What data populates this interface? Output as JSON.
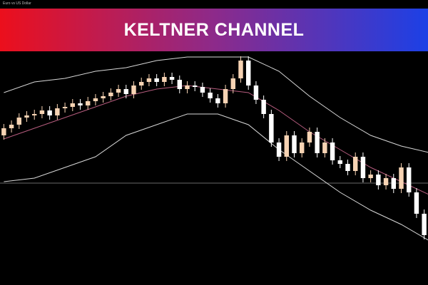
{
  "chart_data": {
    "type": "candlestick",
    "symbol": "Euro vs US Dollar",
    "title": "KELTNER CHANNEL",
    "ylim": [
      0,
      328
    ],
    "up_color": "#f7d3b3",
    "down_color": "#ffffff",
    "price_line": 143,
    "price_line_color": "#8a8a8a",
    "open": [
      210,
      220,
      225,
      235,
      238,
      240,
      245,
      238,
      248,
      250,
      255,
      252,
      258,
      262,
      265,
      270,
      275,
      268,
      280,
      285,
      290,
      285,
      292,
      288,
      275,
      280,
      278,
      270,
      262,
      255,
      275,
      290,
      315,
      280,
      260,
      240,
      200,
      180,
      210,
      185,
      200,
      215,
      185,
      200,
      175,
      170,
      160,
      180,
      150,
      155,
      140,
      150,
      135,
      165,
      130,
      100
    ],
    "close": [
      220,
      225,
      235,
      238,
      240,
      245,
      238,
      248,
      250,
      255,
      252,
      258,
      262,
      265,
      270,
      275,
      268,
      280,
      285,
      290,
      285,
      292,
      288,
      275,
      280,
      278,
      270,
      262,
      255,
      275,
      290,
      315,
      280,
      260,
      240,
      200,
      180,
      210,
      185,
      200,
      215,
      185,
      200,
      175,
      170,
      160,
      180,
      150,
      155,
      140,
      150,
      135,
      165,
      130,
      100,
      70
    ],
    "high": [
      226,
      231,
      241,
      244,
      246,
      251,
      251,
      254,
      256,
      261,
      261,
      264,
      268,
      271,
      276,
      281,
      281,
      286,
      291,
      296,
      296,
      298,
      298,
      294,
      286,
      286,
      284,
      276,
      268,
      281,
      296,
      321,
      321,
      286,
      266,
      246,
      206,
      216,
      216,
      206,
      221,
      221,
      206,
      206,
      181,
      176,
      186,
      186,
      161,
      161,
      156,
      156,
      171,
      171,
      136,
      106
    ],
    "low": [
      204,
      214,
      219,
      229,
      232,
      234,
      232,
      232,
      242,
      244,
      246,
      246,
      252,
      256,
      259,
      264,
      262,
      262,
      274,
      279,
      279,
      279,
      282,
      269,
      269,
      272,
      264,
      256,
      249,
      249,
      269,
      284,
      274,
      254,
      234,
      194,
      174,
      174,
      179,
      179,
      194,
      179,
      179,
      169,
      164,
      154,
      154,
      144,
      144,
      134,
      134,
      129,
      129,
      124,
      94,
      64
    ],
    "bands": {
      "x": [
        0,
        4,
        8,
        12,
        16,
        20,
        24,
        28,
        32,
        36,
        40,
        44,
        48,
        52,
        56
      ],
      "upper": {
        "color": "#d8d8d8",
        "values": [
          270,
          285,
          290,
          300,
          305,
          315,
          320,
          320,
          320,
          300,
          265,
          235,
          210,
          195,
          185
        ]
      },
      "middle": {
        "color": "#b65c7e",
        "values": [
          205,
          220,
          235,
          250,
          265,
          275,
          280,
          275,
          270,
          245,
          215,
          190,
          165,
          145,
          125
        ]
      },
      "lower": {
        "color": "#d8d8d8",
        "values": [
          145,
          150,
          165,
          180,
          210,
          225,
          240,
          240,
          225,
          190,
          160,
          130,
          105,
          85,
          60
        ]
      }
    }
  }
}
